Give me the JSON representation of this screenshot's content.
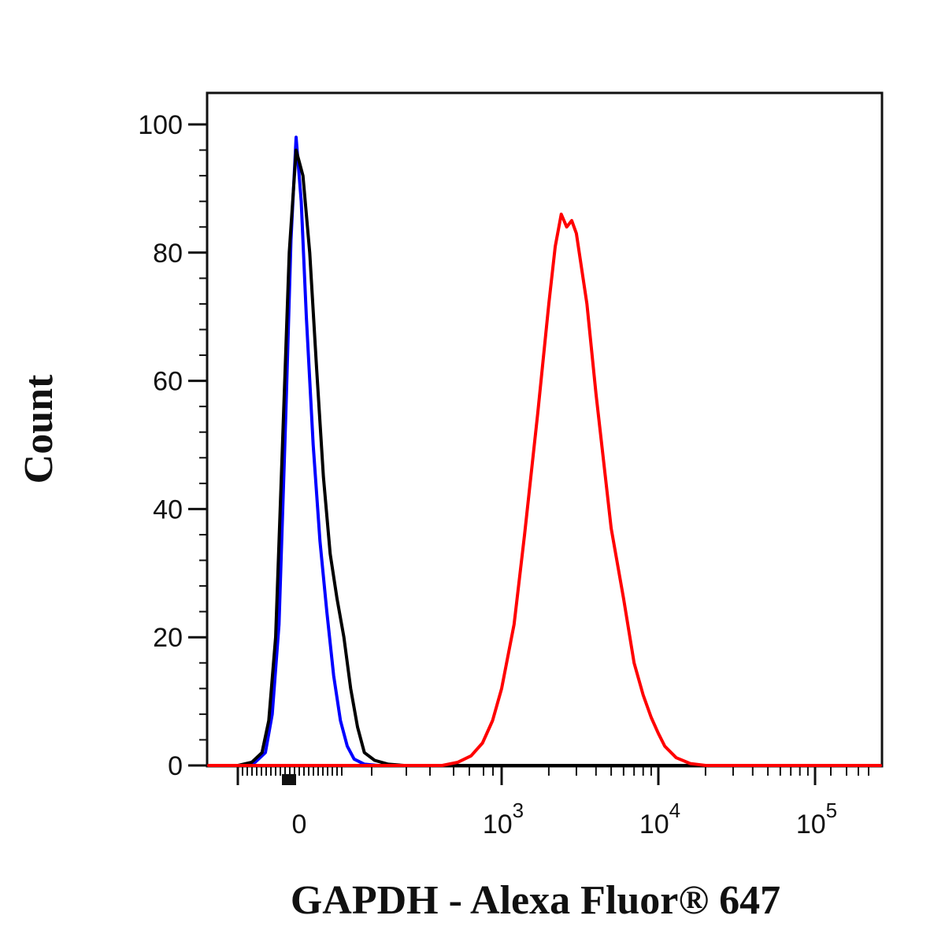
{
  "chart_data": {
    "type": "line",
    "xlabel": "GAPDH - Alexa Fluor® 647",
    "ylabel": "Count",
    "ylim": [
      0,
      105
    ],
    "x_scale": "biexponential",
    "grid": false,
    "legend": "none",
    "y_ticks": [
      {
        "value": 0,
        "label": "0"
      },
      {
        "value": 20,
        "label": "20"
      },
      {
        "value": 40,
        "label": "40"
      },
      {
        "value": 60,
        "label": "60"
      },
      {
        "value": 80,
        "label": "80"
      },
      {
        "value": 100,
        "label": "100"
      }
    ],
    "x_ticks": [
      {
        "value": 0,
        "label": "0"
      },
      {
        "value": 1000,
        "label": "10",
        "exponent": "3"
      },
      {
        "value": 10000,
        "label": "10",
        "exponent": "4"
      },
      {
        "value": 100000,
        "label": "10",
        "exponent": "5"
      }
    ],
    "series": [
      {
        "color": "#0000ff",
        "x": [
          -160,
          -120,
          -90,
          -70,
          -50,
          -30,
          -15,
          0,
          15,
          30,
          50,
          70,
          90,
          110,
          130,
          150,
          170,
          200,
          240,
          280
        ],
        "y": [
          0,
          0.5,
          2,
          8,
          22,
          55,
          82,
          98,
          88,
          70,
          50,
          35,
          24,
          14,
          7,
          3,
          1,
          0.2,
          0,
          0
        ]
      },
      {
        "color": "#000000",
        "x": [
          -170,
          -130,
          -100,
          -80,
          -60,
          -40,
          -20,
          0,
          20,
          40,
          60,
          80,
          100,
          120,
          140,
          160,
          180,
          200,
          230,
          270,
          320
        ],
        "y": [
          0,
          0.5,
          2,
          7,
          20,
          50,
          80,
          96,
          92,
          80,
          62,
          45,
          33,
          26,
          20,
          12,
          6,
          2,
          0.8,
          0.2,
          0
        ]
      },
      {
        "color": "#ff0000",
        "x": [
          500,
          600,
          700,
          800,
          900,
          1000,
          1200,
          1400,
          1700,
          2000,
          2200,
          2400,
          2600,
          2800,
          3000,
          3500,
          4000,
          5000,
          6000,
          7000,
          8000,
          9000,
          10000,
          11000,
          13000,
          16000,
          20000,
          30000,
          50000,
          100000,
          200000
        ],
        "y": [
          0,
          0.5,
          1.5,
          3.5,
          7,
          12,
          22,
          36,
          55,
          72,
          81,
          86,
          84,
          85,
          83,
          72,
          58,
          37,
          26,
          16,
          11,
          7.5,
          5,
          3,
          1.2,
          0.3,
          0,
          0,
          0,
          0,
          0
        ]
      }
    ]
  }
}
